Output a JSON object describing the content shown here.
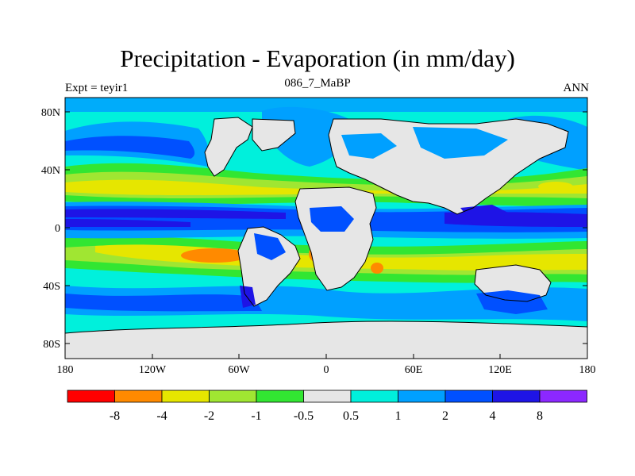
{
  "title": "Precipitation - Evaporation (in mm/day)",
  "subtitle_left": "Expt = teyir1",
  "subtitle_center": "086_7_MaBP",
  "subtitle_right": "ANN",
  "lat_labels": [
    "80N",
    "40N",
    "0",
    "40S",
    "80S"
  ],
  "lon_labels": [
    "180",
    "120W",
    "60W",
    "0",
    "60E",
    "120E",
    "180"
  ],
  "colorbar": {
    "colors": [
      "#ff0000",
      "#ff8a00",
      "#e6e600",
      "#a0e632",
      "#32e632",
      "#e6e6e6",
      "#00f0dc",
      "#00a0ff",
      "#0050ff",
      "#1e14e6",
      "#8c28ff"
    ],
    "labels": [
      "-8",
      "-4",
      "-2",
      "-1",
      "-0.5",
      "0.5",
      "1",
      "2",
      "4",
      "8"
    ]
  },
  "palette": {
    "ocean_base": "#00f0dc",
    "land": "#e6e6e6",
    "wet_light": "#00a0ff",
    "wet": "#0050ff",
    "wet_strong": "#1e14e6",
    "dry_light": "#32e632",
    "dry_mid": "#a0e632",
    "dry": "#e6e600",
    "dry_strong": "#ff8a00"
  }
}
